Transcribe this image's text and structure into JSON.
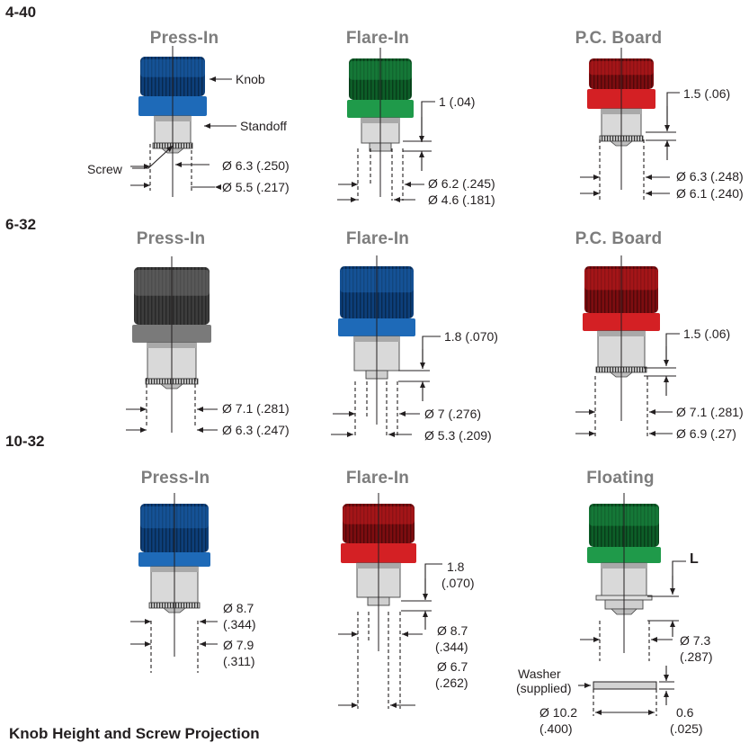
{
  "sections": [
    {
      "label": "4-40",
      "columns": [
        {
          "title": "Press-In",
          "knob_color": "#1e6ab8",
          "knob_dark": "#0d3f7a",
          "dims": [
            "Ø 6.3 (.250)",
            "Ø 5.5 (.217)"
          ]
        },
        {
          "title": "Flare-In",
          "knob_color": "#1f9a4a",
          "knob_dark": "#0d5e28",
          "dims": [
            "1 (.04)",
            "Ø 6.2 (.245)",
            "Ø 4.6 (.181)"
          ]
        },
        {
          "title": "P.C. Board",
          "knob_color": "#d42024",
          "knob_dark": "#7d0d10",
          "dims": [
            "1.5 (.06)",
            "Ø 6.3 (.248)",
            "Ø 6.1 (.240)"
          ]
        }
      ]
    },
    {
      "label": "6-32",
      "columns": [
        {
          "title": "Press-In",
          "knob_color": "#7a7a7a",
          "knob_dark": "#3d3d3d",
          "dims": [
            "Ø 7.1 (.281)",
            "Ø 6.3 (.247)"
          ]
        },
        {
          "title": "Flare-In",
          "knob_color": "#1e6ab8",
          "knob_dark": "#0d3f7a",
          "dims": [
            "1.8 (.070)",
            "Ø 7 (.276)",
            "Ø 5.3 (.209)"
          ]
        },
        {
          "title": "P.C. Board",
          "knob_color": "#d42024",
          "knob_dark": "#7d0d10",
          "dims": [
            "1.5 (.06)",
            "Ø 7.1 (.281)",
            "Ø 6.9 (.27)"
          ]
        }
      ]
    },
    {
      "label": "10-32",
      "columns": [
        {
          "title": "Press-In",
          "knob_color": "#1e6ab8",
          "knob_dark": "#0d3f7a",
          "dims": [
            "Ø 8.7",
            "(.344)",
            "Ø 7.9",
            "(.311)"
          ]
        },
        {
          "title": "Flare-In",
          "knob_color": "#d42024",
          "knob_dark": "#7d0d10",
          "dims": [
            "1.8",
            "(.070)",
            "Ø 8.7",
            "(.344)",
            "Ø 6.7",
            "(.262)"
          ]
        },
        {
          "title": "Floating",
          "knob_color": "#1f9a4a",
          "knob_dark": "#0d5e28",
          "dims": [
            "L",
            "Ø 7.3",
            "(.287)",
            "Washer",
            "(supplied)",
            "Ø 10.2",
            "(.400)",
            "0.6",
            "(.025)"
          ]
        }
      ]
    }
  ],
  "callouts": {
    "knob": "Knob",
    "standoff": "Standoff",
    "screw": "Screw"
  },
  "footer": {
    "title": "Knob Height and Screw Projection"
  }
}
